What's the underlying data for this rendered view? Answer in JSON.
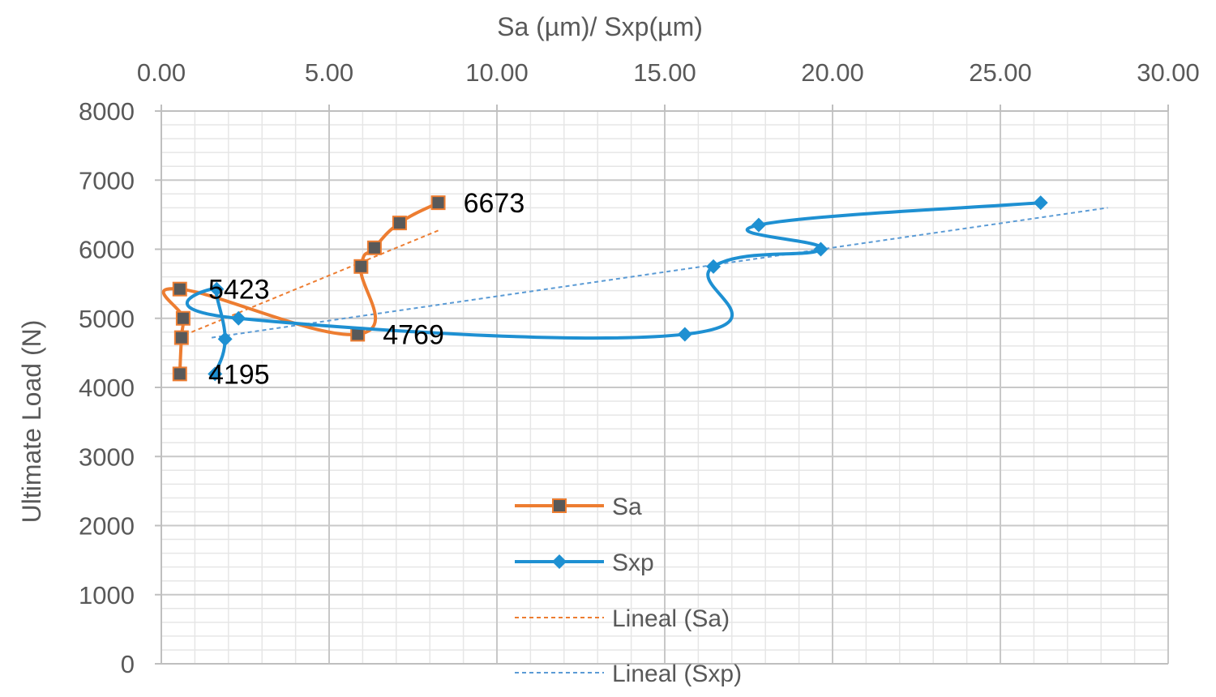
{
  "chart_data": {
    "type": "line",
    "xlabel": "Sa  (µm)/ Sxp(µm)",
    "ylabel": "Ultimate Load (N)",
    "x_ticks": [
      "0.00",
      "5.00",
      "10.00",
      "15.00",
      "20.00",
      "25.00",
      "30.00"
    ],
    "y_ticks": [
      "0",
      "1000",
      "2000",
      "3000",
      "4000",
      "5000",
      "6000",
      "7000",
      "8000"
    ],
    "xlim": [
      0,
      30
    ],
    "ylim": [
      0,
      8000
    ],
    "x_axis_position": "top",
    "grid": true,
    "legend_position": "bottom-center",
    "series": [
      {
        "name": "Sa",
        "color": "#ED7D31",
        "marker": "square",
        "points": [
          {
            "x": 0.55,
            "y": 4195
          },
          {
            "x": 0.6,
            "y": 4720
          },
          {
            "x": 0.65,
            "y": 5000
          },
          {
            "x": 0.55,
            "y": 5423
          },
          {
            "x": 5.85,
            "y": 4769
          },
          {
            "x": 5.95,
            "y": 5750
          },
          {
            "x": 6.35,
            "y": 6020
          },
          {
            "x": 7.1,
            "y": 6380
          },
          {
            "x": 8.25,
            "y": 6673
          }
        ]
      },
      {
        "name": "Sxp",
        "color": "#1E90D2",
        "marker": "diamond",
        "points": [
          {
            "x": 1.6,
            "y": 4195
          },
          {
            "x": 1.9,
            "y": 4700
          },
          {
            "x": 1.65,
            "y": 5423
          },
          {
            "x": 2.3,
            "y": 5000
          },
          {
            "x": 15.6,
            "y": 4769
          },
          {
            "x": 16.45,
            "y": 5750
          },
          {
            "x": 19.65,
            "y": 6000
          },
          {
            "x": 17.8,
            "y": 6350
          },
          {
            "x": 26.2,
            "y": 6673
          }
        ]
      },
      {
        "name": "Lineal (Sa)",
        "color": "#ED7D31",
        "dashed": true,
        "points": [
          {
            "x": 0.5,
            "y": 4720
          },
          {
            "x": 8.3,
            "y": 6280
          }
        ]
      },
      {
        "name": "Lineal (Sxp)",
        "color": "#5B9BD5",
        "dashed": true,
        "points": [
          {
            "x": 1.5,
            "y": 4720
          },
          {
            "x": 28.2,
            "y": 6600
          }
        ]
      }
    ],
    "annotations": [
      {
        "text": "6673",
        "x": 9.0,
        "y": 6673
      },
      {
        "text": "5423",
        "x": 1.4,
        "y": 5423
      },
      {
        "text": "4769",
        "x": 6.6,
        "y": 4769
      },
      {
        "text": "4195",
        "x": 1.4,
        "y": 4195
      }
    ]
  }
}
